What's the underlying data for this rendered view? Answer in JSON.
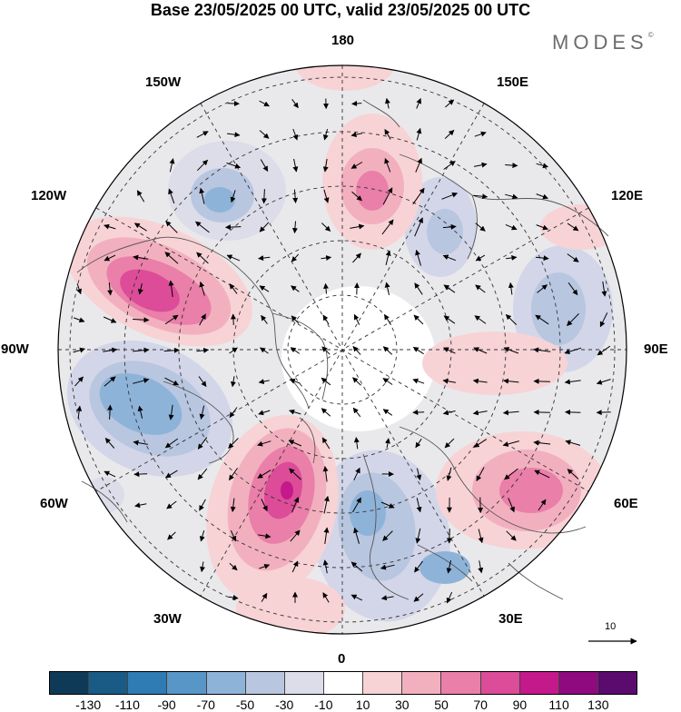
{
  "title": "Base 23/05/2025 00 UTC, valid 23/05/2025 00 UTC",
  "brand": "MODES",
  "brand_mark": "©",
  "longitude_labels": {
    "lon_180": "180",
    "lon_150e": "150E",
    "lon_120e": "120E",
    "lon_90e": "90E",
    "lon_60e": "60E",
    "lon_30e": "30E",
    "lon_0": "0",
    "lon_30w": "30W",
    "lon_60w": "60W",
    "lon_90w": "90W",
    "lon_120w": "120W",
    "lon_150w": "150W"
  },
  "vector_scale_label": "10",
  "colorbar": {
    "colors": [
      "#0f3a57",
      "#1a5b86",
      "#2f7bb3",
      "#5896c8",
      "#8eb3d9",
      "#b8c6e0",
      "#dcdde9",
      "#ffffff",
      "#f7d3d6",
      "#f2b0bf",
      "#ea7fa9",
      "#dc4c98",
      "#c4198a",
      "#8e0a7e",
      "#5b0a6e"
    ],
    "ticks": [
      "-130",
      "-110",
      "-90",
      "-70",
      "-50",
      "-30",
      "-10",
      "10",
      "30",
      "50",
      "70",
      "90",
      "110",
      "130"
    ]
  }
}
